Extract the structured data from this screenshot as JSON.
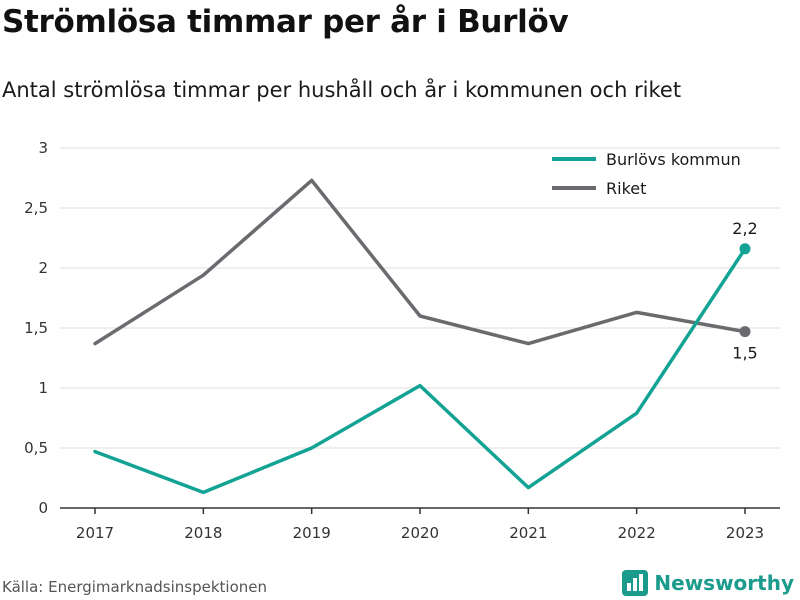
{
  "header": {
    "title": "Strömlösa timmar per år i Burlöv",
    "subtitle": "Antal strömlösa timmar per hushåll och år i kommunen och riket"
  },
  "footer": {
    "source": "Källa: Energimarknadsinspektionen",
    "brand": "Newsworthy",
    "brand_icon": "bar-chart-icon"
  },
  "colors": {
    "burlov": "#13a394",
    "riket": "#6b6b6f",
    "grid": "#dedede",
    "axis": "#333333",
    "brand": "#1a9b8c"
  },
  "chart_data": {
    "type": "line",
    "categories": [
      "2017",
      "2018",
      "2019",
      "2020",
      "2021",
      "2022",
      "2023"
    ],
    "series": [
      {
        "name": "Burlövs kommun",
        "values": [
          0.47,
          0.13,
          0.5,
          1.02,
          0.17,
          0.79,
          2.16
        ],
        "end_label": "2,2"
      },
      {
        "name": "Riket",
        "values": [
          1.37,
          1.94,
          2.73,
          1.6,
          1.37,
          1.63,
          1.47
        ],
        "end_label": "1,5"
      }
    ],
    "y_ticks": [
      {
        "value": 0,
        "label": "0"
      },
      {
        "value": 0.5,
        "label": "0,5"
      },
      {
        "value": 1,
        "label": "1"
      },
      {
        "value": 1.5,
        "label": "1,5"
      },
      {
        "value": 2,
        "label": "2"
      },
      {
        "value": 2.5,
        "label": "2,5"
      },
      {
        "value": 3,
        "label": "3"
      }
    ],
    "ylim": [
      0,
      3
    ],
    "grid": true,
    "legend": "top-right"
  }
}
